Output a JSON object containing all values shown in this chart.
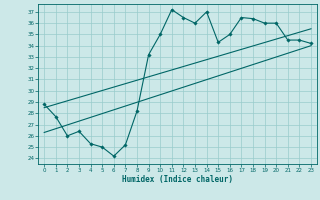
{
  "title": "",
  "xlabel": "Humidex (Indice chaleur)",
  "ylabel": "",
  "background_color": "#cce8e8",
  "line_color": "#006666",
  "grid_color": "#99cccc",
  "xlim": [
    -0.5,
    23.5
  ],
  "ylim": [
    23.5,
    37.7
  ],
  "yticks": [
    24,
    25,
    26,
    27,
    28,
    29,
    30,
    31,
    32,
    33,
    34,
    35,
    36,
    37
  ],
  "xticks": [
    0,
    1,
    2,
    3,
    4,
    5,
    6,
    7,
    8,
    9,
    10,
    11,
    12,
    13,
    14,
    15,
    16,
    17,
    18,
    19,
    20,
    21,
    22,
    23
  ],
  "zigzag_x": [
    0,
    1,
    2,
    3,
    4,
    5,
    6,
    7,
    8,
    9,
    10,
    11,
    12,
    13,
    14,
    15,
    16,
    17,
    18,
    19,
    20,
    21,
    22,
    23
  ],
  "zigzag_y": [
    28.8,
    27.7,
    26.0,
    26.4,
    25.3,
    25.0,
    24.2,
    25.2,
    28.2,
    33.2,
    35.0,
    37.2,
    36.5,
    36.0,
    37.0,
    34.3,
    35.0,
    36.5,
    36.4,
    36.0,
    36.0,
    34.5,
    34.5,
    34.2
  ],
  "upper_line_x": [
    0,
    23
  ],
  "upper_line_y": [
    28.5,
    35.5
  ],
  "lower_line_x": [
    0,
    23
  ],
  "lower_line_y": [
    26.3,
    34.0
  ],
  "marker": "D",
  "markersize": 1.8,
  "linewidth": 0.8
}
